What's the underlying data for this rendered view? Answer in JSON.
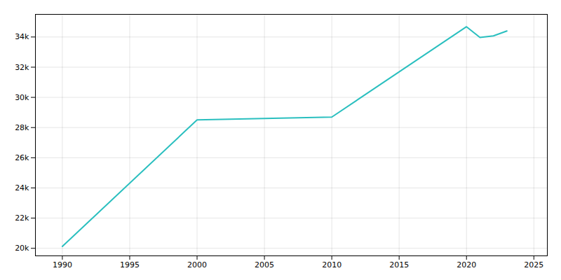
{
  "chart_data": {
    "type": "line",
    "x": [
      1990,
      2000,
      2010,
      2020,
      2021,
      2022,
      2023
    ],
    "values": [
      20126,
      28507,
      28695,
      34681,
      33968,
      34072,
      34399
    ],
    "color": "#2abfbf",
    "xlim": [
      1988,
      2026
    ],
    "ylim": [
      19500,
      35500
    ],
    "xticks": [
      1990,
      1995,
      2000,
      2005,
      2010,
      2015,
      2020,
      2025
    ],
    "yticks": [
      {
        "value": 20000,
        "label": "20k"
      },
      {
        "value": 22000,
        "label": "22k"
      },
      {
        "value": 24000,
        "label": "24k"
      },
      {
        "value": 26000,
        "label": "26k"
      },
      {
        "value": 28000,
        "label": "28k"
      },
      {
        "value": 30000,
        "label": "30k"
      },
      {
        "value": 32000,
        "label": "32k"
      },
      {
        "value": 34000,
        "label": "34k"
      }
    ],
    "grid": true
  }
}
